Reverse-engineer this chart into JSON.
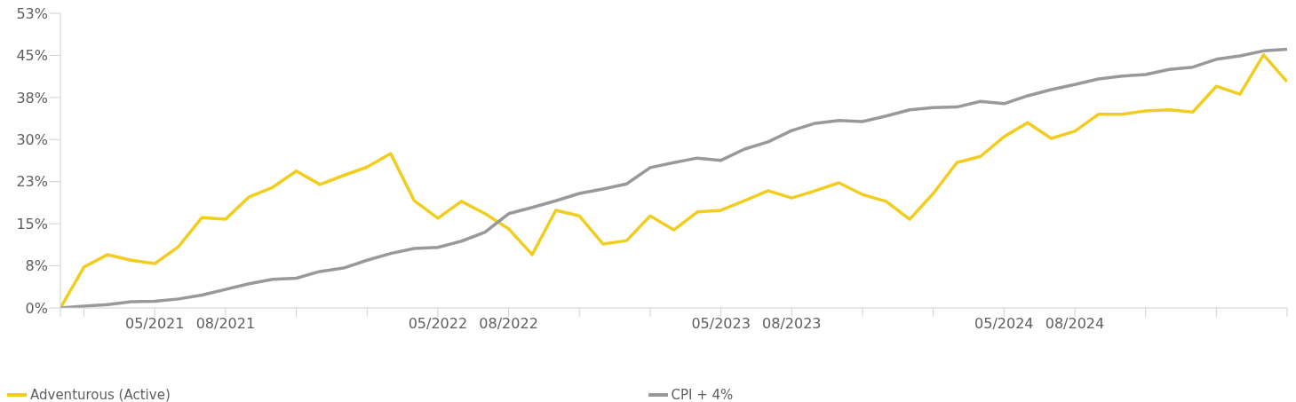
{
  "chart_data": {
    "type": "line",
    "x": [
      "2021-01",
      "2021-02",
      "2021-03",
      "2021-04",
      "2021-05",
      "2021-06",
      "2021-07",
      "2021-08",
      "2021-09",
      "2021-10",
      "2021-11",
      "2021-12",
      "2022-01",
      "2022-02",
      "2022-03",
      "2022-04",
      "2022-05",
      "2022-06",
      "2022-07",
      "2022-08",
      "2022-09",
      "2022-10",
      "2022-11",
      "2022-12",
      "2023-01",
      "2023-02",
      "2023-03",
      "2023-04",
      "2023-05",
      "2023-06",
      "2023-07",
      "2023-08",
      "2023-09",
      "2023-10",
      "2023-11",
      "2023-12",
      "2024-01",
      "2024-02",
      "2024-03",
      "2024-04",
      "2024-05",
      "2024-06",
      "2024-07",
      "2024-08",
      "2024-09",
      "2024-10",
      "2024-11",
      "2024-12",
      "2025-01",
      "2025-02",
      "2025-03",
      "2025-04",
      "2025-05"
    ],
    "series": [
      {
        "name": "Adventurous (Active)",
        "color": "#f2cd1f",
        "values": [
          0,
          7.3,
          9.5,
          8.5,
          7.9,
          10.9,
          16.1,
          15.8,
          19.8,
          21.5,
          24.4,
          22.0,
          23.6,
          25.1,
          27.5,
          19.1,
          16.0,
          19.0,
          16.8,
          14.1,
          9.5,
          17.4,
          16.4,
          11.4,
          12.0,
          16.4,
          13.9,
          17.1,
          17.4,
          19.1,
          20.9,
          19.6,
          20.9,
          22.3,
          20.2,
          19.0,
          15.8,
          20.4,
          25.9,
          27.0,
          30.5,
          33.0,
          30.2,
          31.5,
          34.5,
          34.5,
          35.1,
          35.3,
          34.9,
          39.5,
          38.1,
          45.1,
          40.3
        ]
      },
      {
        "name": "CPI + 4%",
        "color": "#99999b",
        "values": [
          0,
          0.3,
          0.6,
          1.1,
          1.2,
          1.6,
          2.3,
          3.3,
          4.3,
          5.1,
          5.3,
          6.5,
          7.1,
          8.5,
          9.7,
          10.6,
          10.8,
          11.9,
          13.5,
          16.8,
          17.9,
          19.1,
          20.4,
          21.2,
          22.1,
          25.0,
          25.9,
          26.7,
          26.3,
          28.3,
          29.6,
          31.6,
          32.9,
          33.4,
          33.2,
          34.2,
          35.3,
          35.7,
          35.8,
          36.8,
          36.4,
          37.8,
          38.9,
          39.8,
          40.8,
          41.3,
          41.6,
          42.5,
          42.9,
          44.3,
          44.9,
          45.8,
          46.1
        ]
      }
    ],
    "xlim": [
      "2021-01",
      "2025-05"
    ],
    "xticks": [
      {
        "value": "2021-01",
        "label": null
      },
      {
        "value": "2021-02",
        "label": null
      },
      {
        "value": "2021-05",
        "label": "05/2021"
      },
      {
        "value": "2021-08",
        "label": "08/2021"
      },
      {
        "value": "2021-11",
        "label": null
      },
      {
        "value": "2022-02",
        "label": null
      },
      {
        "value": "2022-05",
        "label": "05/2022"
      },
      {
        "value": "2022-08",
        "label": "08/2022"
      },
      {
        "value": "2022-11",
        "label": null
      },
      {
        "value": "2023-02",
        "label": null
      },
      {
        "value": "2023-05",
        "label": "05/2023"
      },
      {
        "value": "2023-08",
        "label": "08/2023"
      },
      {
        "value": "2023-11",
        "label": null
      },
      {
        "value": "2024-02",
        "label": null
      },
      {
        "value": "2024-05",
        "label": "05/2024"
      },
      {
        "value": "2024-08",
        "label": "08/2024"
      },
      {
        "value": "2024-11",
        "label": null
      },
      {
        "value": "2025-02",
        "label": null
      },
      {
        "value": "2025-05",
        "label": null
      }
    ],
    "ylim": [
      0,
      52.5
    ],
    "yticks": [
      {
        "value": 0,
        "label": "0%"
      },
      {
        "value": 7.5,
        "label": "8%"
      },
      {
        "value": 15,
        "label": "15%"
      },
      {
        "value": 22.5,
        "label": "23%"
      },
      {
        "value": 30,
        "label": "30%"
      },
      {
        "value": 37.5,
        "label": "38%"
      },
      {
        "value": 45,
        "label": "45%"
      },
      {
        "value": 52.5,
        "label": "53%"
      }
    ],
    "grid": false,
    "legend": "bottom",
    "marker": "none",
    "line_style": "solid"
  }
}
